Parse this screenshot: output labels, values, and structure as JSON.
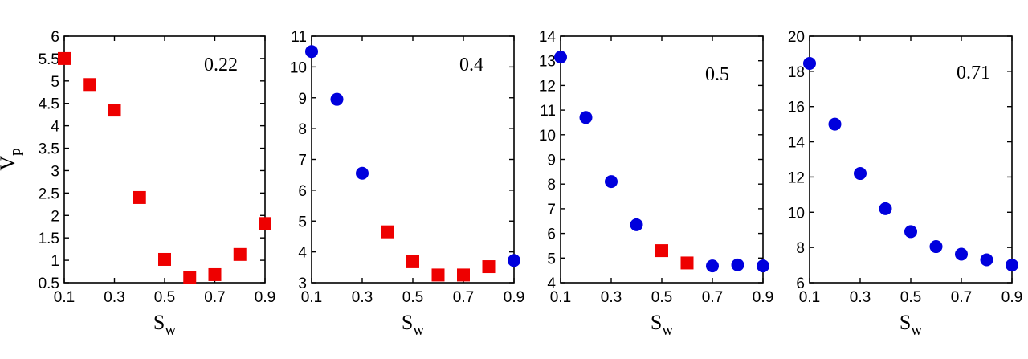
{
  "colors": {
    "square": "#ee0000",
    "circle": "#0000dd"
  },
  "chart_data": [
    {
      "type": "scatter",
      "annotation": "0.22",
      "xlabel": "S_w",
      "ylabel": "V_p",
      "xlim": [
        0.1,
        0.9
      ],
      "ylim": [
        0.5,
        6
      ],
      "xticks": [
        "0.1",
        "0.3",
        "0.5",
        "0.7",
        "0.9"
      ],
      "yticks": [
        "0.5",
        "1",
        "1.5",
        "2",
        "2.5",
        "3",
        "3.5",
        "4",
        "4.5",
        "5",
        "5.5",
        "6"
      ],
      "points": [
        {
          "x": 0.1,
          "y": 5.5,
          "marker": "square"
        },
        {
          "x": 0.2,
          "y": 4.92,
          "marker": "square"
        },
        {
          "x": 0.3,
          "y": 4.35,
          "marker": "square"
        },
        {
          "x": 0.4,
          "y": 2.4,
          "marker": "square"
        },
        {
          "x": 0.5,
          "y": 1.02,
          "marker": "square"
        },
        {
          "x": 0.6,
          "y": 0.62,
          "marker": "square"
        },
        {
          "x": 0.7,
          "y": 0.68,
          "marker": "square"
        },
        {
          "x": 0.8,
          "y": 1.13,
          "marker": "square"
        },
        {
          "x": 0.9,
          "y": 1.82,
          "marker": "square"
        }
      ]
    },
    {
      "type": "scatter",
      "annotation": "0.4",
      "xlabel": "S_w",
      "ylabel": "",
      "xlim": [
        0.1,
        0.9
      ],
      "ylim": [
        3,
        11
      ],
      "xticks": [
        "0.1",
        "0.3",
        "0.5",
        "0.7",
        "0.9"
      ],
      "yticks": [
        "3",
        "4",
        "5",
        "6",
        "7",
        "8",
        "9",
        "10",
        "11"
      ],
      "points": [
        {
          "x": 0.1,
          "y": 10.5,
          "marker": "circle"
        },
        {
          "x": 0.2,
          "y": 8.95,
          "marker": "circle"
        },
        {
          "x": 0.3,
          "y": 6.55,
          "marker": "circle"
        },
        {
          "x": 0.4,
          "y": 4.65,
          "marker": "square"
        },
        {
          "x": 0.5,
          "y": 3.68,
          "marker": "square"
        },
        {
          "x": 0.6,
          "y": 3.25,
          "marker": "square"
        },
        {
          "x": 0.7,
          "y": 3.25,
          "marker": "square"
        },
        {
          "x": 0.8,
          "y": 3.52,
          "marker": "square"
        },
        {
          "x": 0.9,
          "y": 3.72,
          "marker": "circle"
        }
      ]
    },
    {
      "type": "scatter",
      "annotation": "0.5",
      "xlabel": "S_w",
      "ylabel": "",
      "xlim": [
        0.1,
        0.9
      ],
      "ylim": [
        4,
        14
      ],
      "xticks": [
        "0.1",
        "0.3",
        "0.5",
        "0.7",
        "0.9"
      ],
      "yticks": [
        "4",
        "5",
        "6",
        "7",
        "8",
        "9",
        "10",
        "11",
        "12",
        "13",
        "14"
      ],
      "points": [
        {
          "x": 0.1,
          "y": 13.15,
          "marker": "circle"
        },
        {
          "x": 0.2,
          "y": 10.7,
          "marker": "circle"
        },
        {
          "x": 0.3,
          "y": 8.1,
          "marker": "circle"
        },
        {
          "x": 0.4,
          "y": 6.35,
          "marker": "circle"
        },
        {
          "x": 0.5,
          "y": 5.3,
          "marker": "square"
        },
        {
          "x": 0.6,
          "y": 4.8,
          "marker": "square"
        },
        {
          "x": 0.7,
          "y": 4.68,
          "marker": "circle"
        },
        {
          "x": 0.8,
          "y": 4.72,
          "marker": "circle"
        },
        {
          "x": 0.9,
          "y": 4.68,
          "marker": "circle"
        }
      ]
    },
    {
      "type": "scatter",
      "annotation": "0.71",
      "xlabel": "S_w",
      "ylabel": "",
      "xlim": [
        0.1,
        0.9
      ],
      "ylim": [
        6,
        20
      ],
      "xticks": [
        "0.1",
        "0.3",
        "0.5",
        "0.7",
        "0.9"
      ],
      "yticks": [
        "6",
        "8",
        "10",
        "12",
        "14",
        "16",
        "18",
        "20"
      ],
      "points": [
        {
          "x": 0.1,
          "y": 18.45,
          "marker": "circle"
        },
        {
          "x": 0.2,
          "y": 15.0,
          "marker": "circle"
        },
        {
          "x": 0.3,
          "y": 12.2,
          "marker": "circle"
        },
        {
          "x": 0.4,
          "y": 10.2,
          "marker": "circle"
        },
        {
          "x": 0.5,
          "y": 8.9,
          "marker": "circle"
        },
        {
          "x": 0.6,
          "y": 8.05,
          "marker": "circle"
        },
        {
          "x": 0.7,
          "y": 7.62,
          "marker": "circle"
        },
        {
          "x": 0.8,
          "y": 7.3,
          "marker": "circle"
        },
        {
          "x": 0.9,
          "y": 7.0,
          "marker": "circle"
        }
      ]
    }
  ]
}
